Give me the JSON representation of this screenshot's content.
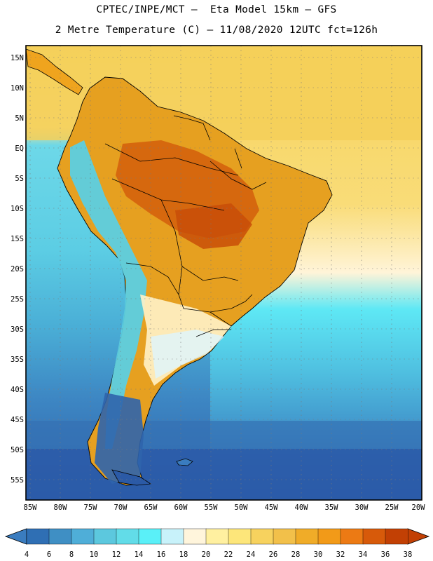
{
  "title": {
    "line1": "CPTEC/INPE/MCT –  Eta Model 15km – GFS",
    "line2": "2 Metre Temperature (C) – 11/08/2020 12UTC fct=126h"
  },
  "axes": {
    "lat_labels": [
      "15N",
      "10N",
      "5N",
      "EQ",
      "5S",
      "10S",
      "15S",
      "20S",
      "25S",
      "30S",
      "35S",
      "40S",
      "45S",
      "50S",
      "55S"
    ],
    "lon_labels": [
      "85W",
      "80W",
      "75W",
      "70W",
      "65W",
      "60W",
      "55W",
      "50W",
      "45W",
      "40W",
      "35W",
      "30W",
      "25W",
      "20W"
    ],
    "lat_values": [
      15,
      10,
      5,
      0,
      -5,
      -10,
      -15,
      -20,
      -25,
      -30,
      -35,
      -40,
      -45,
      -50,
      -55
    ],
    "lon_values": [
      -85,
      -80,
      -75,
      -70,
      -65,
      -60,
      -55,
      -50,
      -45,
      -40,
      -35,
      -30,
      -25,
      -20
    ],
    "lat_range": [
      -58,
      17
    ],
    "lon_range": [
      -87,
      -20
    ]
  },
  "colorbar": {
    "labels": [
      "4",
      "6",
      "8",
      "10",
      "12",
      "14",
      "16",
      "18",
      "20",
      "22",
      "24",
      "26",
      "28",
      "30",
      "32",
      "34",
      "36",
      "38"
    ],
    "colors": [
      "#3a7cbf",
      "#2f6fb4",
      "#3f8fc4",
      "#4faed8",
      "#5cc8de",
      "#62dce8",
      "#5af0f8",
      "#c8f2fa",
      "#fff5dc",
      "#fff0a0",
      "#fde67a",
      "#f7d25e",
      "#f2c04a",
      "#f0ac28",
      "#f29a18",
      "#ec7a14",
      "#d75a0a",
      "#c24004"
    ],
    "left_arrow_color": "#3a7cbf",
    "right_arrow_color": "#c24004"
  }
}
